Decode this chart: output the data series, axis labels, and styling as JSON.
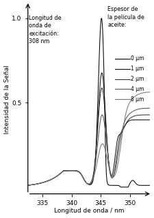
{
  "title_annotation": "Espesor de\nla película de\naceite:",
  "excitation_annotation": "Longitud de\nonda de\nexcitación:\n308 nm",
  "ylabel": "Intensidad de la Señal",
  "xlabel": "Longitud de onda / nm",
  "xlim": [
    332.5,
    353.5
  ],
  "ylim": [
    -0.04,
    1.08
  ],
  "yticks": [
    0.5,
    1.0
  ],
  "xticks": [
    335,
    340,
    345,
    350
  ],
  "legend_labels": [
    "0 μm",
    "1 μm",
    "2 μm",
    "4 μm",
    "8 μm"
  ],
  "colors": [
    "#000000",
    "#111111",
    "#333333",
    "#555555",
    "#777777"
  ],
  "background_color": "#ffffff"
}
